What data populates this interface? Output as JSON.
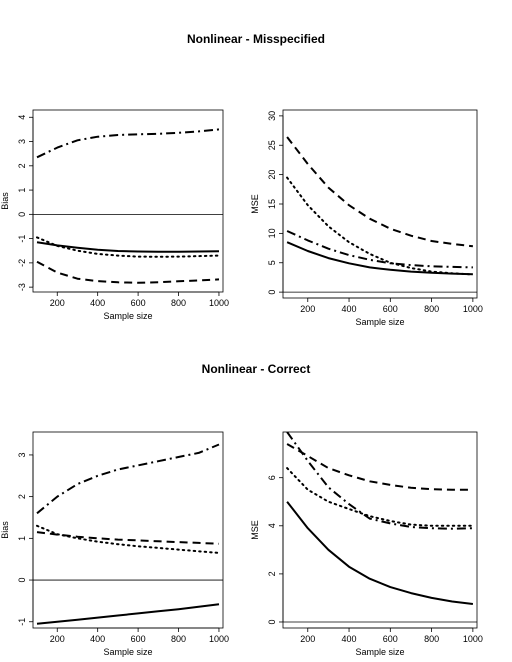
{
  "sections": [
    {
      "title": "Nonlinear - Misspecified"
    },
    {
      "title": "Nonlinear - Correct"
    }
  ],
  "chart_data": [
    {
      "type": "line",
      "section": "Nonlinear - Misspecified",
      "title": "",
      "xlabel": "Sample size",
      "ylabel": "Bias",
      "xlim": [
        80,
        1020
      ],
      "ylim": [
        -3.2,
        4.3
      ],
      "xticks": [
        200,
        400,
        600,
        800,
        1000
      ],
      "yticks": [
        -3,
        -2,
        -1,
        0,
        1,
        2,
        3,
        4
      ],
      "hline": 0,
      "x": [
        100,
        200,
        300,
        400,
        500,
        600,
        700,
        800,
        900,
        1000
      ],
      "series": [
        {
          "style": "solid",
          "values": [
            -1.15,
            -1.28,
            -1.38,
            -1.46,
            -1.51,
            -1.53,
            -1.54,
            -1.54,
            -1.53,
            -1.52
          ]
        },
        {
          "style": "dashed",
          "values": [
            -1.95,
            -2.4,
            -2.65,
            -2.75,
            -2.8,
            -2.82,
            -2.8,
            -2.76,
            -2.72,
            -2.68
          ]
        },
        {
          "style": "dotted",
          "values": [
            -0.95,
            -1.3,
            -1.5,
            -1.63,
            -1.7,
            -1.74,
            -1.75,
            -1.74,
            -1.72,
            -1.7
          ]
        },
        {
          "style": "dashdot",
          "values": [
            2.35,
            2.75,
            3.05,
            3.2,
            3.27,
            3.3,
            3.32,
            3.36,
            3.42,
            3.5
          ]
        }
      ]
    },
    {
      "type": "line",
      "section": "Nonlinear - Misspecified",
      "title": "",
      "xlabel": "Sample size",
      "ylabel": "MSE",
      "xlim": [
        80,
        1020
      ],
      "ylim": [
        -1,
        31
      ],
      "xticks": [
        200,
        400,
        600,
        800,
        1000
      ],
      "yticks": [
        0,
        5,
        10,
        15,
        20,
        25,
        30
      ],
      "hline": 0,
      "x": [
        100,
        200,
        300,
        400,
        500,
        600,
        700,
        800,
        900,
        1000
      ],
      "series": [
        {
          "style": "solid",
          "values": [
            8.5,
            7.0,
            5.8,
            4.9,
            4.2,
            3.8,
            3.5,
            3.3,
            3.15,
            3.05
          ]
        },
        {
          "style": "dashed",
          "values": [
            26.4,
            21.8,
            17.8,
            14.8,
            12.5,
            10.8,
            9.6,
            8.7,
            8.2,
            7.8
          ]
        },
        {
          "style": "dotted",
          "values": [
            19.5,
            14.8,
            11.2,
            8.5,
            6.5,
            5.0,
            4.1,
            3.5,
            3.2,
            3.0
          ]
        },
        {
          "style": "dashdot",
          "values": [
            10.4,
            8.8,
            7.4,
            6.3,
            5.5,
            4.9,
            4.6,
            4.4,
            4.3,
            4.2
          ]
        }
      ]
    },
    {
      "type": "line",
      "section": "Nonlinear - Correct",
      "title": "",
      "xlabel": "Sample size",
      "ylabel": "Bias",
      "xlim": [
        80,
        1020
      ],
      "ylim": [
        -1.15,
        3.55
      ],
      "xticks": [
        200,
        400,
        600,
        800,
        1000
      ],
      "yticks": [
        -1,
        0,
        1,
        2,
        3
      ],
      "hline": 0,
      "x": [
        100,
        200,
        300,
        400,
        500,
        600,
        700,
        800,
        900,
        1000
      ],
      "series": [
        {
          "style": "solid",
          "values": [
            -1.05,
            -1.0,
            -0.95,
            -0.9,
            -0.85,
            -0.8,
            -0.75,
            -0.7,
            -0.64,
            -0.58
          ]
        },
        {
          "style": "dashed",
          "values": [
            1.15,
            1.09,
            1.04,
            1.0,
            0.97,
            0.95,
            0.93,
            0.91,
            0.89,
            0.87
          ]
        },
        {
          "style": "dotted",
          "values": [
            1.3,
            1.1,
            1.0,
            0.92,
            0.86,
            0.81,
            0.77,
            0.73,
            0.69,
            0.65
          ]
        },
        {
          "style": "dashdot",
          "values": [
            1.6,
            2.0,
            2.3,
            2.5,
            2.65,
            2.75,
            2.85,
            2.95,
            3.05,
            3.25
          ]
        }
      ]
    },
    {
      "type": "line",
      "section": "Nonlinear - Correct",
      "title": "",
      "xlabel": "Sample size",
      "ylabel": "MSE",
      "xlim": [
        80,
        1020
      ],
      "ylim": [
        -0.25,
        7.9
      ],
      "xticks": [
        200,
        400,
        600,
        800,
        1000
      ],
      "yticks": [
        0,
        2,
        4,
        6
      ],
      "hline": 0,
      "x": [
        100,
        200,
        300,
        400,
        500,
        600,
        700,
        800,
        900,
        1000
      ],
      "series": [
        {
          "style": "solid",
          "values": [
            5.0,
            3.9,
            3.0,
            2.3,
            1.8,
            1.45,
            1.2,
            1.0,
            0.85,
            0.75
          ]
        },
        {
          "style": "dashed",
          "values": [
            7.4,
            6.9,
            6.4,
            6.1,
            5.85,
            5.7,
            5.58,
            5.52,
            5.5,
            5.5
          ]
        },
        {
          "style": "dotted",
          "values": [
            6.4,
            5.5,
            5.0,
            4.7,
            4.4,
            4.2,
            4.05,
            4.0,
            4.0,
            4.0
          ]
        },
        {
          "style": "dashdot",
          "values": [
            7.9,
            6.7,
            5.6,
            4.9,
            4.3,
            4.1,
            3.95,
            3.9,
            3.88,
            3.9
          ]
        }
      ]
    }
  ]
}
